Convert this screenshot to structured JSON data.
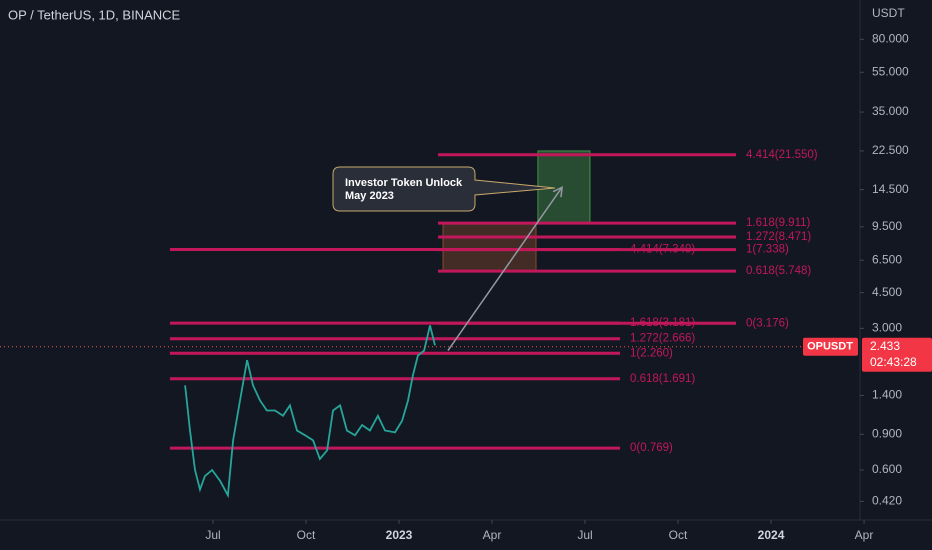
{
  "chart_data": {
    "type": "line",
    "title": "OP / TetherUS, 1D, BINANCE",
    "y_axis_label": "USDT",
    "log_scale": true,
    "ylim": [
      0.34,
      125
    ],
    "yticks": [
      {
        "value": 80,
        "label": "80.000"
      },
      {
        "value": 55,
        "label": "55.000"
      },
      {
        "value": 35,
        "label": "35.000"
      },
      {
        "value": 22.5,
        "label": "22.500"
      },
      {
        "value": 14.5,
        "label": "14.500"
      },
      {
        "value": 9.5,
        "label": "9.500"
      },
      {
        "value": 6.5,
        "label": "6.500"
      },
      {
        "value": 4.5,
        "label": "4.500"
      },
      {
        "value": 3,
        "label": "3.000"
      },
      {
        "value": 1.4,
        "label": "1.400"
      },
      {
        "value": 0.9,
        "label": "0.900"
      },
      {
        "value": 0.6,
        "label": "0.600"
      },
      {
        "value": 0.42,
        "label": "0.420"
      }
    ],
    "xlim": [
      -6.87,
      20.87
    ],
    "xticks": [
      {
        "value": 0,
        "label": "Jul"
      },
      {
        "value": 3,
        "label": "Oct"
      },
      {
        "value": 6,
        "label": "2023"
      },
      {
        "value": 9,
        "label": "Apr"
      },
      {
        "value": 12,
        "label": "Jul"
      },
      {
        "value": 15,
        "label": "Oct"
      },
      {
        "value": 18,
        "label": "2024"
      },
      {
        "value": 21,
        "label": "Apr"
      }
    ],
    "series": [
      {
        "name": "OPUSDT",
        "color": "#26a69a",
        "x": [
          -0.9,
          -0.74,
          -0.58,
          -0.42,
          -0.26,
          -0.03,
          0.23,
          0.48,
          0.65,
          0.87,
          1.1,
          1.29,
          1.52,
          1.74,
          2.0,
          2.26,
          2.48,
          2.71,
          2.97,
          3.23,
          3.45,
          3.68,
          3.87,
          4.1,
          4.32,
          4.58,
          4.81,
          5.06,
          5.32,
          5.55,
          5.87,
          6.1,
          6.29,
          6.45,
          6.61,
          6.81,
          7.0,
          7.16
        ],
        "values": [
          1.57,
          0.94,
          0.6,
          0.48,
          0.56,
          0.6,
          0.53,
          0.45,
          0.84,
          1.32,
          2.09,
          1.57,
          1.32,
          1.18,
          1.18,
          1.11,
          1.25,
          0.94,
          0.89,
          0.84,
          0.68,
          0.75,
          1.18,
          1.25,
          0.94,
          0.89,
          1.0,
          0.94,
          1.11,
          0.94,
          0.92,
          1.05,
          1.32,
          1.76,
          2.2,
          2.33,
          3.1,
          2.47
        ]
      }
    ],
    "last": {
      "name": "OPUSDT",
      "value": 2.433,
      "timer": "02:43:28"
    },
    "levels": [
      {
        "label": "4.414(21.550)",
        "value": 21.55,
        "x0": 7.26,
        "x1": 16.87
      },
      {
        "label": "1.618(9.911)",
        "value": 9.911,
        "x0": 7.26,
        "x1": 16.87
      },
      {
        "label": "1.272(8.471)",
        "value": 8.471,
        "x0": 7.26,
        "x1": 16.87
      },
      {
        "label": "1(7.338)",
        "value": 7.338,
        "x0": 7.26,
        "x1": 16.87
      },
      {
        "label": "0.618(5.748)",
        "value": 5.748,
        "x0": 7.26,
        "x1": 16.87
      },
      {
        "label": "0(3.176)",
        "value": 3.176,
        "x0": 7.26,
        "x1": 16.87
      },
      {
        "label": "4.414(7.349)",
        "value": 7.349,
        "x0": -1.39,
        "x1": 13.13
      },
      {
        "label": "1.618(3.181)",
        "value": 3.181,
        "x0": -1.39,
        "x1": 13.13
      },
      {
        "label": "1.272(2.666)",
        "value": 2.666,
        "x0": -1.39,
        "x1": 13.13
      },
      {
        "label": "1(2.260)",
        "value": 2.26,
        "x0": -1.39,
        "x1": 13.13
      },
      {
        "label": "0.618(1.691)",
        "value": 1.691,
        "x0": -1.39,
        "x1": 13.13
      },
      {
        "label": "0(0.769)",
        "value": 0.769,
        "x0": -1.39,
        "x1": 13.13
      }
    ],
    "boxes": [
      {
        "x0": 7.42,
        "x1": 10.42,
        "y0": 5.748,
        "y1": 9.911,
        "color": "#a0522d"
      },
      {
        "x0": 10.48,
        "x1": 12.16,
        "y0": 9.911,
        "y1": 22.5,
        "color": "#4caf50"
      }
    ],
    "arrow": {
      "x0": 7.58,
      "y0": 2.33,
      "x1": 11.26,
      "y1": 14.9
    },
    "annotation": [
      "Investor Token Unlock",
      "May 2023"
    ]
  }
}
